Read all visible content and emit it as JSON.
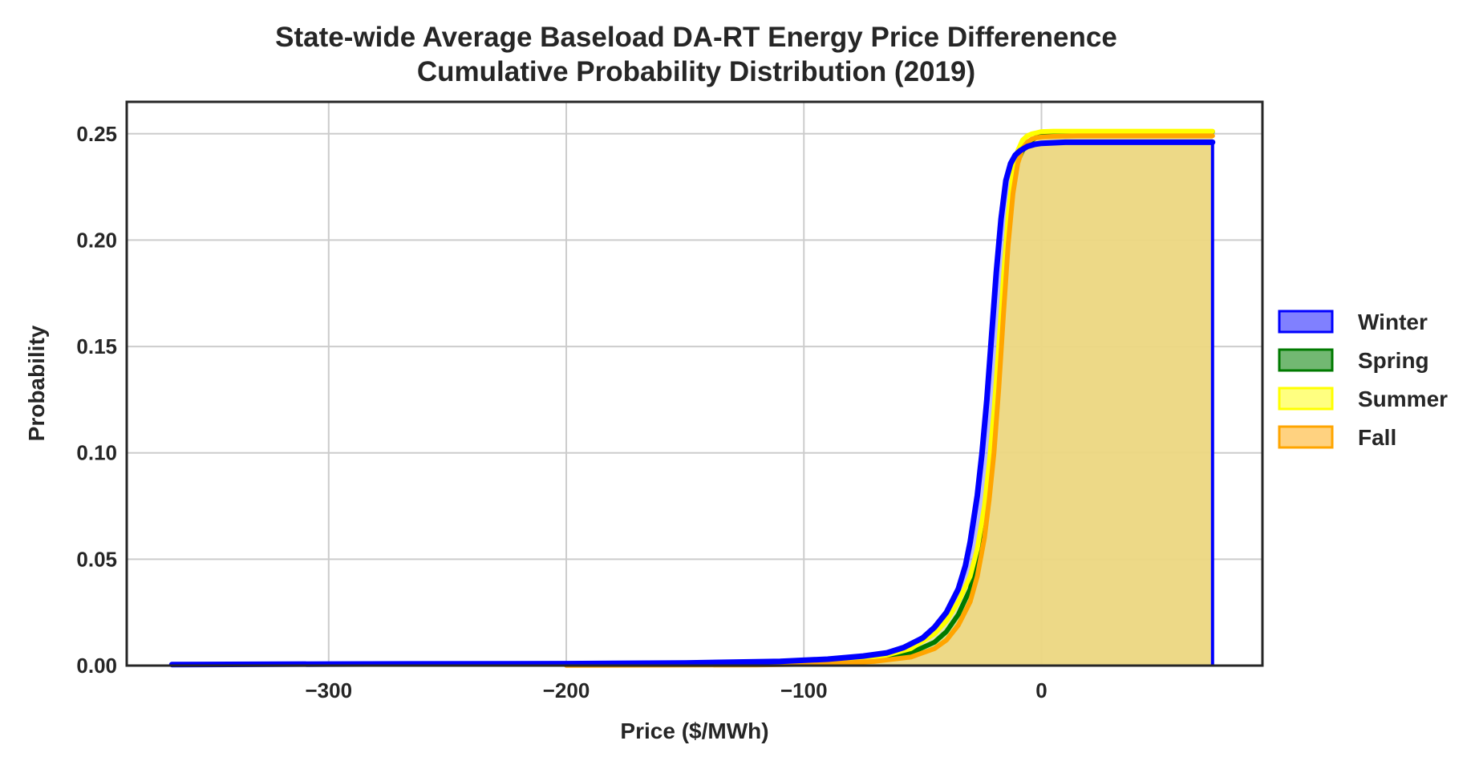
{
  "chart_data": {
    "type": "area",
    "title_line1": "State-wide Average Baseload DA-RT Energy Price Differenence",
    "title_line2": "Cumulative Probability Distribution (2019)",
    "xlabel": "Price ($/MWh)",
    "ylabel": "Probability",
    "xlim": [
      -385,
      93
    ],
    "ylim": [
      0,
      0.265
    ],
    "xticks": [
      -300,
      -200,
      -100,
      0
    ],
    "xtick_labels": [
      "−300",
      "−200",
      "−100",
      "0"
    ],
    "yticks": [
      0.0,
      0.05,
      0.1,
      0.15,
      0.2,
      0.25
    ],
    "ytick_labels": [
      "0.00",
      "0.05",
      "0.10",
      "0.15",
      "0.20",
      "0.25"
    ],
    "grid": true,
    "legend_position": "center-right outside",
    "series": [
      {
        "name": "Winter",
        "line_color": "#0000ff",
        "fill_color": "#8080ff",
        "x": [
          -366,
          -300,
          -200,
          -150,
          -110,
          -90,
          -75,
          -65,
          -58,
          -50,
          -45,
          -40,
          -35,
          -32,
          -30,
          -27,
          -25,
          -23,
          -21,
          -19,
          -17,
          -15,
          -13,
          -11,
          -9,
          -6,
          -3,
          0,
          10,
          30,
          50,
          72
        ],
        "y": [
          0.0005,
          0.0007,
          0.0009,
          0.0012,
          0.002,
          0.003,
          0.0045,
          0.006,
          0.0085,
          0.013,
          0.018,
          0.025,
          0.036,
          0.047,
          0.058,
          0.08,
          0.1,
          0.125,
          0.155,
          0.185,
          0.21,
          0.228,
          0.236,
          0.24,
          0.242,
          0.244,
          0.245,
          0.2455,
          0.246,
          0.246,
          0.246,
          0.246
        ]
      },
      {
        "name": "Spring",
        "line_color": "#007a00",
        "fill_color": "#72b872",
        "x": [
          -200,
          -120,
          -90,
          -70,
          -55,
          -45,
          -40,
          -35,
          -30,
          -27,
          -24,
          -22,
          -20,
          -18,
          -16,
          -14,
          -12,
          -10,
          -8,
          -6,
          -4,
          -2,
          0,
          5,
          15,
          72
        ],
        "y": [
          0.0002,
          0.0005,
          0.0012,
          0.003,
          0.006,
          0.011,
          0.016,
          0.024,
          0.036,
          0.05,
          0.068,
          0.085,
          0.11,
          0.14,
          0.175,
          0.205,
          0.226,
          0.237,
          0.242,
          0.245,
          0.247,
          0.2485,
          0.2495,
          0.2505,
          0.251,
          0.251
        ]
      },
      {
        "name": "Summer",
        "line_color": "#ffff00",
        "fill_color": "#ffff80",
        "x": [
          -200,
          -120,
          -90,
          -70,
          -55,
          -45,
          -40,
          -35,
          -30,
          -27,
          -24,
          -22,
          -20,
          -18,
          -16,
          -14,
          -12,
          -10,
          -8,
          -6,
          -4,
          -2,
          0,
          5,
          15,
          72
        ],
        "y": [
          0.0002,
          0.0006,
          0.0015,
          0.0035,
          0.008,
          0.015,
          0.021,
          0.03,
          0.042,
          0.055,
          0.075,
          0.095,
          0.12,
          0.15,
          0.183,
          0.212,
          0.232,
          0.242,
          0.247,
          0.249,
          0.25,
          0.2505,
          0.251,
          0.2512,
          0.2512,
          0.2512
        ]
      },
      {
        "name": "Fall",
        "line_color": "#ffa500",
        "fill_color": "#ffd280",
        "x": [
          -200,
          -120,
          -90,
          -70,
          -55,
          -45,
          -40,
          -35,
          -30,
          -27,
          -24,
          -22,
          -20,
          -18,
          -16,
          -14,
          -12,
          -10,
          -8,
          -6,
          -4,
          -2,
          0,
          5,
          15,
          72
        ],
        "y": [
          0.0001,
          0.0003,
          0.0008,
          0.002,
          0.004,
          0.008,
          0.012,
          0.019,
          0.03,
          0.042,
          0.06,
          0.078,
          0.1,
          0.13,
          0.165,
          0.198,
          0.222,
          0.236,
          0.243,
          0.246,
          0.2475,
          0.2482,
          0.2485,
          0.2488,
          0.249,
          0.249
        ]
      }
    ]
  }
}
